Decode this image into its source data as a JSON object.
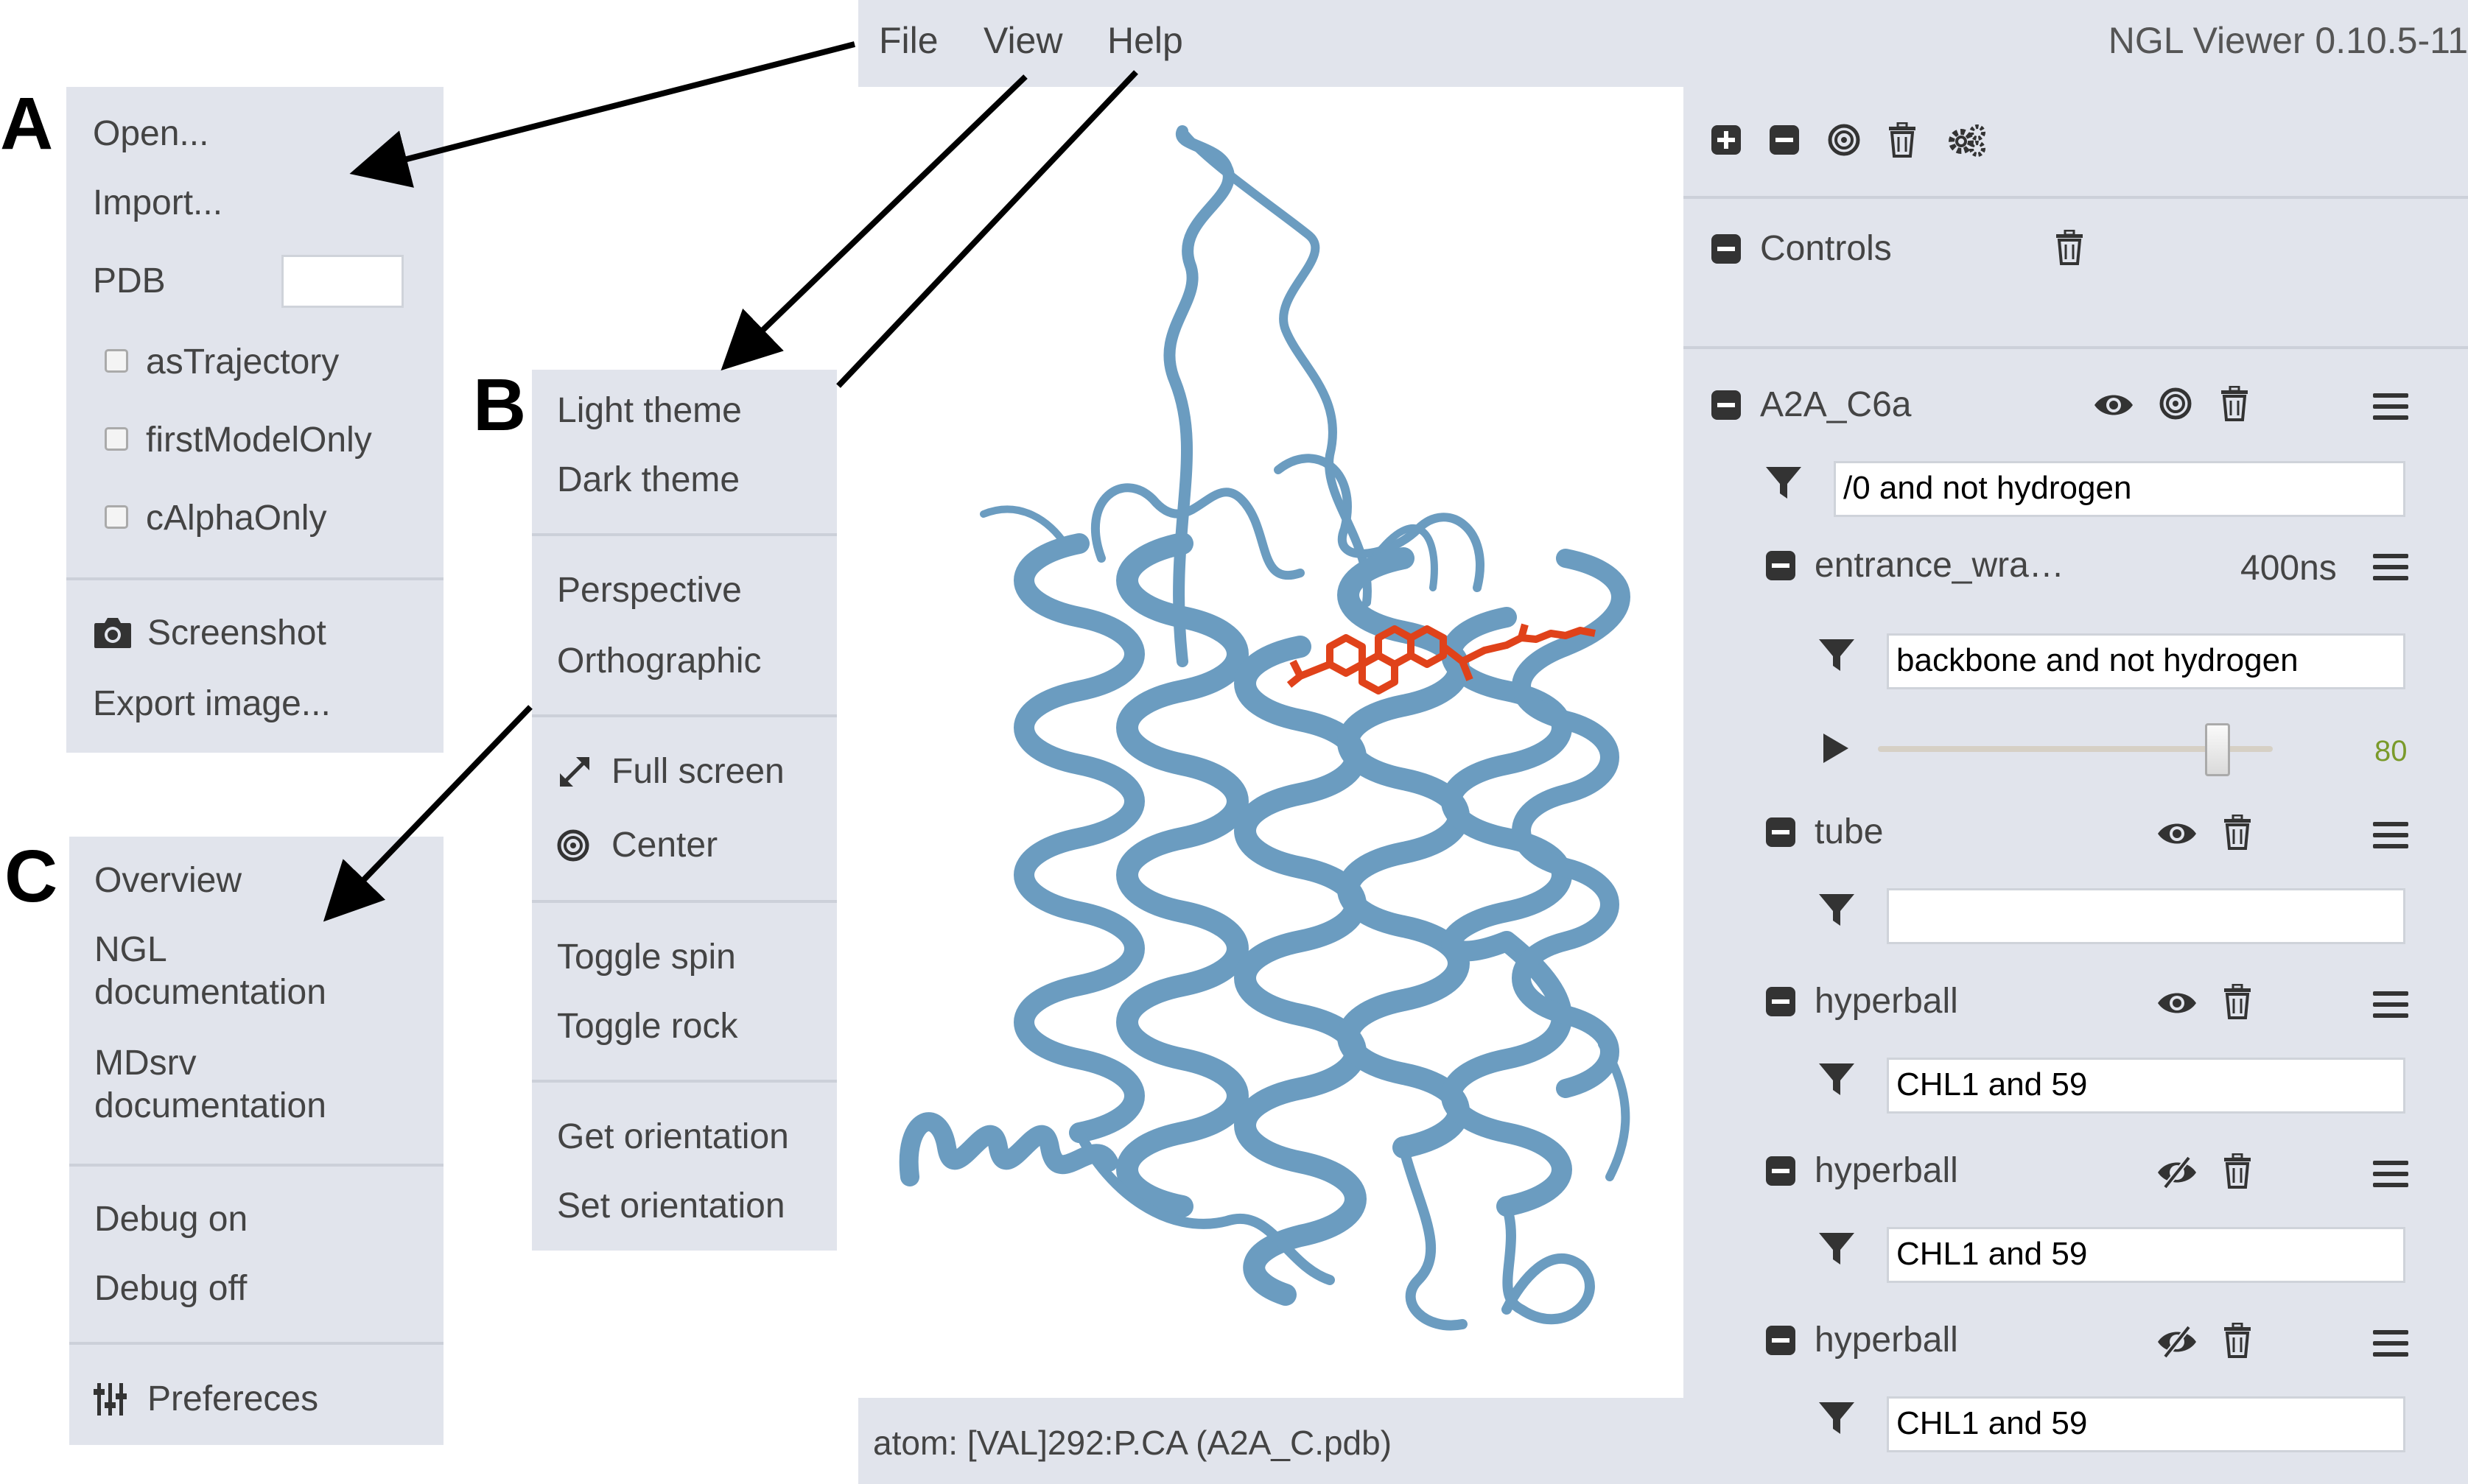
{
  "labels": {
    "a": "A",
    "b": "B",
    "c": "C"
  },
  "file_menu": {
    "open": "Open...",
    "import": "Import...",
    "pdb_label": "PDB",
    "pdb_value": "",
    "as_trajectory": "asTrajectory",
    "first_model_only": "firstModelOnly",
    "c_alpha_only": "cAlphaOnly",
    "screenshot": "Screenshot",
    "export_image": "Export image..."
  },
  "view_menu": {
    "light_theme": "Light theme",
    "dark_theme": "Dark theme",
    "perspective": "Perspective",
    "orthographic": "Orthographic",
    "full_screen": "Full screen",
    "center": "Center",
    "toggle_spin": "Toggle spin",
    "toggle_rock": "Toggle rock",
    "get_orientation": "Get orientation",
    "set_orientation": "Set orientation"
  },
  "help_menu": {
    "overview": "Overview",
    "ngl_doc_1": "NGL",
    "ngl_doc_2": "documentation",
    "mdsrv_doc_1": "MDsrv",
    "mdsrv_doc_2": "documentation",
    "debug_on": "Debug on",
    "debug_off": "Debug off",
    "preferences": "Prefereces"
  },
  "topbar": {
    "file": "File",
    "view": "View",
    "help": "Help",
    "app_title": "NGL Viewer 0.10.5-11"
  },
  "statusbar": {
    "text": "atom: [VAL]292:P.CA (A2A_C.pdb)"
  },
  "sidebar": {
    "controls": "Controls",
    "component": {
      "name": "A2A_C6a",
      "filter": "/0 and not hydrogen"
    },
    "trajectory": {
      "name": "entrance_wra…",
      "duration": "400ns",
      "filter": "backbone and not hydrogen",
      "frame": "80",
      "frame_fraction": 0.86
    },
    "representations": [
      {
        "name": "tube",
        "filter": ""
      },
      {
        "name": "hyperball",
        "filter": "CHL1 and 59"
      },
      {
        "name": "hyperball",
        "filter": "CHL1 and 59"
      },
      {
        "name": "hyperball",
        "filter": "CHL1 and 59"
      }
    ]
  },
  "colors": {
    "panel_bg": "#e1e4ec",
    "protein": "#6b9cc0",
    "ligand": "#e0421a",
    "frame_number": "#7a9a2a"
  }
}
